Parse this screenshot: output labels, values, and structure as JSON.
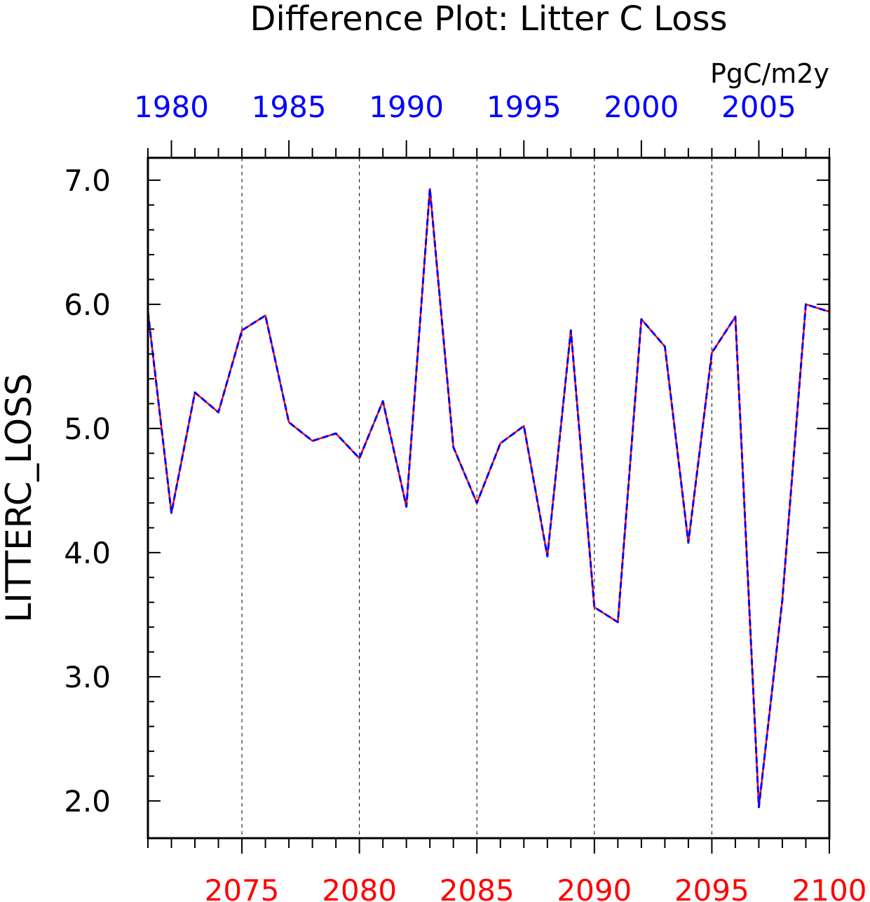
{
  "chart_data": {
    "type": "line",
    "title": "Difference Plot: Litter C Loss",
    "units": "PgC/m2y",
    "ylabel": "LITTERC_LOSS",
    "xlabel": "",
    "ylim": [
      1.7,
      7.18
    ],
    "yticks": [
      "2.0",
      "3.0",
      "4.0",
      "5.0",
      "6.0",
      "7.0"
    ],
    "bottom_axis": {
      "color": "#ff0000",
      "range": [
        2071,
        2100
      ],
      "ticks": [
        "2075",
        "2080",
        "2085",
        "2090",
        "2095",
        "2100"
      ]
    },
    "top_axis": {
      "color": "#0000ff",
      "range": [
        1979,
        2008
      ],
      "ticks": [
        "1980",
        "1985",
        "1990",
        "1995",
        "2000",
        "2005"
      ]
    },
    "grid": "vertical dashed at major bottom-axis ticks",
    "x": [
      2071,
      2072,
      2073,
      2074,
      2075,
      2076,
      2077,
      2078,
      2079,
      2080,
      2081,
      2082,
      2083,
      2084,
      2085,
      2086,
      2087,
      2088,
      2089,
      2090,
      2091,
      2092,
      2093,
      2094,
      2095,
      2096,
      2097,
      2098,
      2099,
      2100
    ],
    "series": [
      {
        "color": "#ff0000",
        "style": "solid",
        "axis": "bottom",
        "values": [
          5.94,
          4.32,
          5.29,
          5.13,
          5.79,
          5.91,
          5.05,
          4.9,
          4.96,
          4.76,
          5.22,
          4.37,
          6.93,
          4.85,
          4.4,
          4.88,
          5.02,
          3.97,
          5.79,
          3.56,
          3.44,
          5.88,
          5.66,
          4.08,
          5.61,
          5.9,
          1.95,
          3.62,
          6.0,
          5.94
        ]
      },
      {
        "color": "#0000ff",
        "style": "dashed",
        "axis": "top",
        "values": [
          5.94,
          4.32,
          5.29,
          5.13,
          5.79,
          5.91,
          5.05,
          4.9,
          4.96,
          4.76,
          5.22,
          4.37,
          6.93,
          4.85,
          4.4,
          4.88,
          5.02,
          3.97,
          5.79,
          3.56,
          3.44,
          5.88,
          5.66,
          4.08,
          5.61,
          5.9,
          1.95,
          3.62,
          6.0,
          5.94
        ]
      }
    ]
  }
}
